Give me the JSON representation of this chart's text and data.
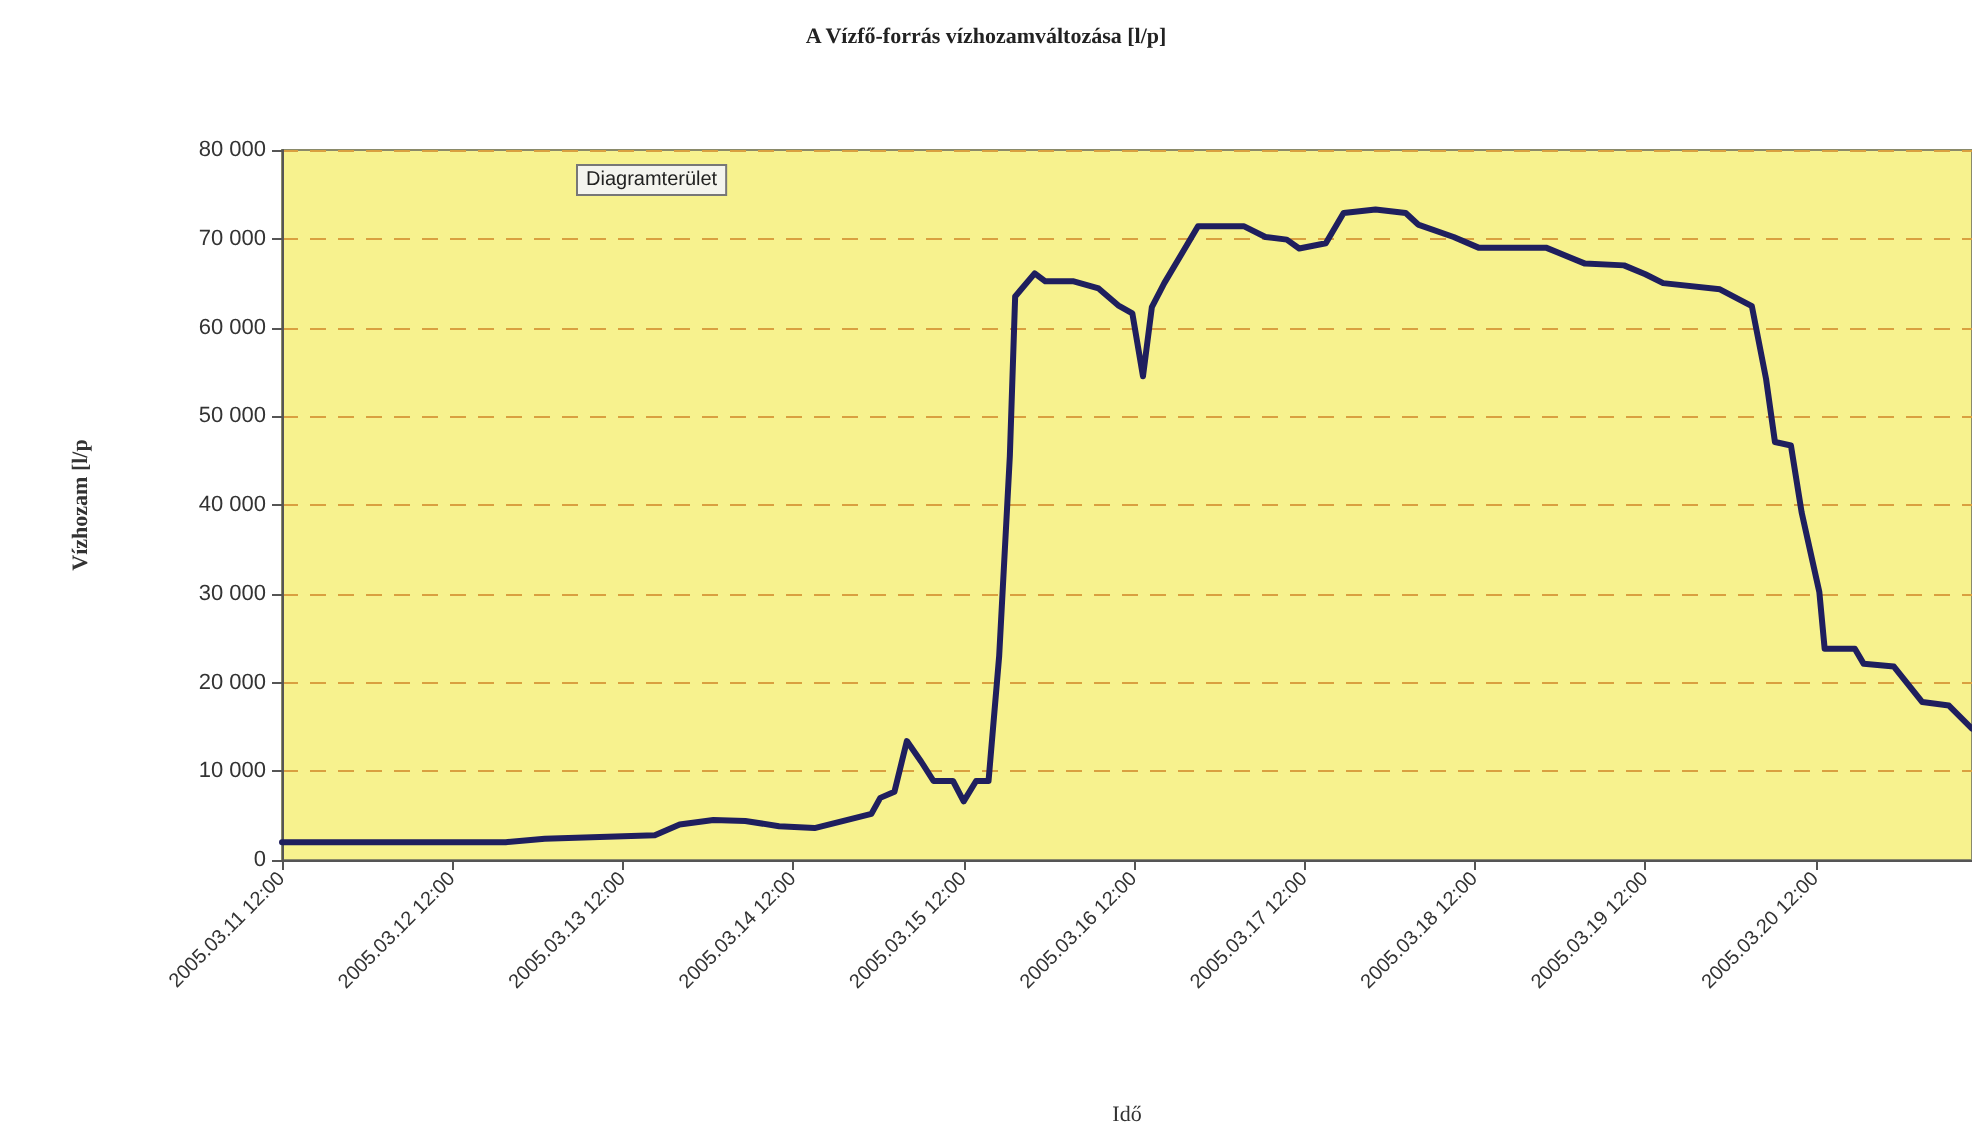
{
  "chart_data": {
    "type": "line",
    "title": "A Vízfő-forrás vízhozamváltozása [l/p]",
    "xlabel": "Idő",
    "ylabel": "Vízhozam [l/p",
    "annotations": [
      "Diagramterület"
    ],
    "x": [
      "2005-03-11T12:00",
      "2005-03-12T19:30",
      "2005-03-13T01:00",
      "2005-03-13T16:30",
      "2005-03-13T20:00",
      "2005-03-14T00:45",
      "2005-03-14T05:15",
      "2005-03-14T10:00",
      "2005-03-14T15:00",
      "2005-03-14T19:30",
      "2005-03-14T23:00",
      "2005-03-15T00:15",
      "2005-03-15T02:15",
      "2005-03-15T04:00",
      "2005-03-15T06:00",
      "2005-03-15T07:45",
      "2005-03-15T10:30",
      "2005-03-15T12:00",
      "2005-03-15T13:45",
      "2005-03-15T15:30",
      "2005-03-15T17:00",
      "2005-03-15T18:30",
      "2005-03-15T19:15",
      "2005-03-15T22:00",
      "2005-03-15T23:30",
      "2005-03-16T03:30",
      "2005-03-16T07:00",
      "2005-03-16T09:45",
      "2005-03-16T11:45",
      "2005-03-16T13:15",
      "2005-03-16T14:30",
      "2005-03-16T16:15",
      "2005-03-16T21:00",
      "2005-03-17T03:30",
      "2005-03-17T06:30",
      "2005-03-17T09:30",
      "2005-03-17T11:15",
      "2005-03-17T15:00",
      "2005-03-17T17:30",
      "2005-03-17T22:00",
      "2005-03-18T02:15",
      "2005-03-18T04:00",
      "2005-03-18T09:00",
      "2005-03-18T12:30",
      "2005-03-18T22:00",
      "2005-03-19T03:30",
      "2005-03-19T09:00",
      "2005-03-19T12:00",
      "2005-03-19T14:30",
      "2005-03-19T22:30",
      "2005-03-20T03:00",
      "2005-03-20T05:00",
      "2005-03-20T06:15",
      "2005-03-20T08:30",
      "2005-03-20T10:00",
      "2005-03-20T12:30",
      "2005-03-20T13:15",
      "2005-03-20T17:30",
      "2005-03-20T18:45",
      "2005-03-20T23:00",
      "2005-03-21T03:00",
      "2005-03-21T06:45",
      "2005-03-21T10:00"
    ],
    "series": [
      {
        "color": "#1f1f5e",
        "values": [
          2000,
          2000,
          2400,
          2800,
          4000,
          4500,
          4400,
          3800,
          3600,
          4500,
          5200,
          7000,
          7700,
          13400,
          11100,
          8900,
          8900,
          6600,
          8900,
          8900,
          23000,
          45500,
          63500,
          66100,
          65200,
          65200,
          64400,
          62500,
          61600,
          54500,
          62300,
          65000,
          71400,
          71400,
          70200,
          69900,
          68900,
          69500,
          72900,
          73300,
          72900,
          71600,
          70200,
          69000,
          69000,
          67200,
          67000,
          66000,
          65000,
          64300,
          62400,
          54200,
          47100,
          46700,
          39200,
          30200,
          23800,
          23800,
          22100,
          21800,
          17800,
          17400,
          14800
        ]
      }
    ],
    "xlim": [
      "2005-03-11T12:00",
      "2005-03-21T10:00"
    ],
    "xticks": [
      {
        "value": "2005-03-11T12:00",
        "label": "2005.03.11 12:00"
      },
      {
        "value": "2005-03-12T12:00",
        "label": "2005.03.12 12:00"
      },
      {
        "value": "2005-03-13T12:00",
        "label": "2005.03.13 12:00"
      },
      {
        "value": "2005-03-14T12:00",
        "label": "2005.03.14 12:00"
      },
      {
        "value": "2005-03-15T12:00",
        "label": "2005.03.15 12:00"
      },
      {
        "value": "2005-03-16T12:00",
        "label": "2005.03.16 12:00"
      },
      {
        "value": "2005-03-17T12:00",
        "label": "2005.03.17 12:00"
      },
      {
        "value": "2005-03-18T12:00",
        "label": "2005.03.18 12:00"
      },
      {
        "value": "2005-03-19T12:00",
        "label": "2005.03.19 12:00"
      },
      {
        "value": "2005-03-20T12:00",
        "label": "2005.03.20 12:00"
      }
    ],
    "ylim": [
      0,
      80000
    ],
    "yticks": [
      0,
      {
        "value": 10000,
        "label": "10 000"
      },
      {
        "value": 20000,
        "label": "20 000"
      },
      {
        "value": 30000,
        "label": "30 000"
      },
      {
        "value": 40000,
        "label": "40 000"
      },
      {
        "value": 50000,
        "label": "50 000"
      },
      {
        "value": 60000,
        "label": "60 000"
      },
      {
        "value": 70000,
        "label": "70 000"
      },
      {
        "value": 80000,
        "label": "80 000"
      }
    ],
    "grid": "y",
    "marker": "none",
    "line_style": "solid"
  }
}
